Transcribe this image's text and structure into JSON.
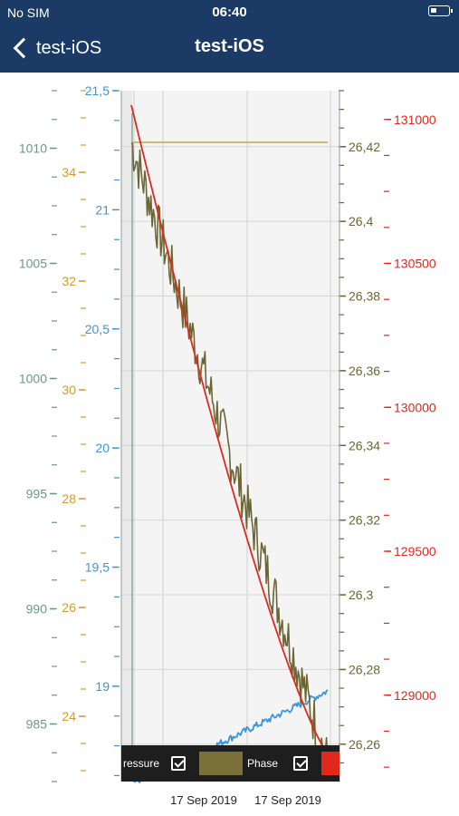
{
  "status_bar": {
    "carrier": "No SIM",
    "time": "06:40",
    "battery_icon": "battery-icon"
  },
  "nav": {
    "back_label": "test-iOS",
    "title": "test-iOS",
    "back_icon": "chevron-left-icon"
  },
  "legend": {
    "item1_label": "ressure",
    "item2_label": "Phase",
    "item1_color": "#7a703a",
    "item2_color": "#e0281c"
  },
  "chart_data": {
    "type": "line",
    "x_tick_labels": [
      "17 Sep 2019",
      "17 Sep 2019"
    ],
    "axes": [
      {
        "id": "axis-1",
        "color": "#6a9a85",
        "range": [
          982.5,
          1012.5
        ],
        "ticks": [
          "985",
          "990",
          "995",
          "1000",
          "1005",
          "1010"
        ]
      },
      {
        "id": "axis-2",
        "color": "#d69a2c",
        "range": [
          22.8,
          35.5
        ],
        "ticks": [
          "24",
          "26",
          "28",
          "30",
          "32",
          "34"
        ]
      },
      {
        "id": "axis-3",
        "color": "#3a96d8",
        "range": [
          18.6,
          21.5
        ],
        "ticks": [
          "19",
          "19,5",
          "20",
          "20,5",
          "21",
          "21,5"
        ]
      },
      {
        "id": "axis-4",
        "color": "#6b6633",
        "range": [
          26.25,
          26.435
        ],
        "ticks": [
          "26,26",
          "26,28",
          "26,3",
          "26,32",
          "26,34",
          "26,36",
          "26,38",
          "26,4",
          "26,42"
        ]
      },
      {
        "id": "axis-5",
        "color": "#e0281c",
        "range": [
          128700,
          131100
        ],
        "ticks": [
          "129000",
          "129500",
          "130000",
          "130500",
          "131000"
        ]
      }
    ],
    "series": [
      {
        "color": "#6b6633",
        "axis": "axis-4",
        "start": 26.421,
        "end": 26.255,
        "noise": 0.007
      },
      {
        "color": "#e0281c",
        "axis": "axis-5",
        "start": 131050,
        "end": 128800,
        "noise": 0
      },
      {
        "color": "#3a96d8",
        "axis": "axis-3",
        "start": 18.58,
        "end": 18.98,
        "noise": 0
      },
      {
        "color": "#c8b063",
        "axis": "axis-2",
        "start": 34.55,
        "end": 34.55,
        "noise": 0
      }
    ]
  }
}
